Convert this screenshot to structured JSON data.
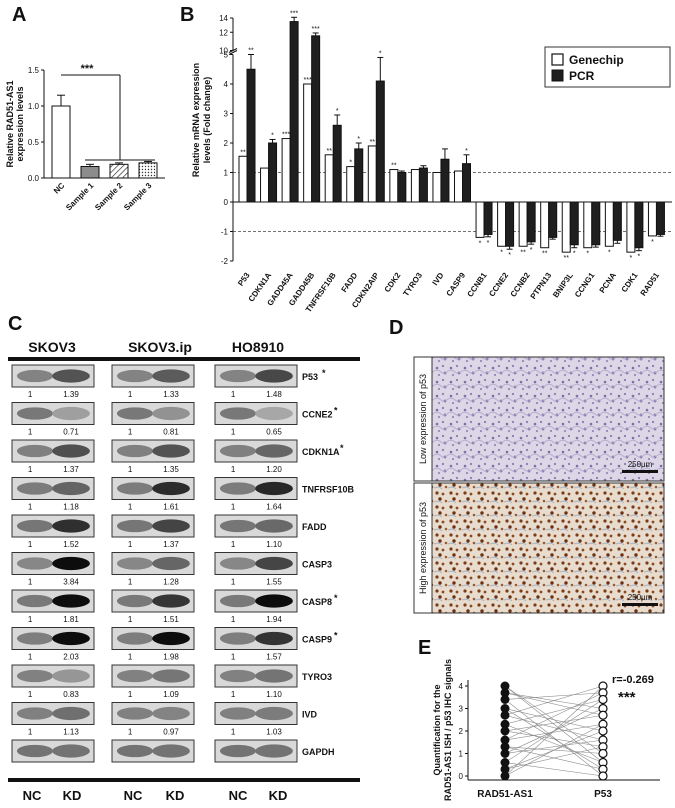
{
  "panels": {
    "A": {
      "letter": "A",
      "ylabel_line1": "Relative RAD51-AS1",
      "ylabel_line2": "expression levels",
      "yticks": [
        "0.0",
        "0.5",
        "1.0",
        "1.5"
      ],
      "significance": "***"
    },
    "B": {
      "letter": "B",
      "ylabel_line1": "Relative mRNA expression",
      "ylabel_line2": "levels (Fold change)",
      "yticks_low": [
        "-2",
        "-1",
        "0",
        "1",
        "2",
        "3",
        "4",
        "5"
      ],
      "yticks_high": [
        "10",
        "12",
        "14"
      ],
      "legend": [
        "Genechip",
        "PCR"
      ]
    },
    "C": {
      "letter": "C",
      "cell_lines": [
        "SKOV3",
        "SKOV3.ip",
        "HO8910"
      ],
      "conditions": [
        "NC",
        "KD",
        "NC",
        "KD",
        "NC",
        "KD"
      ],
      "rows": [
        {
          "protein": "P53",
          "star": "*",
          "values": [
            "1",
            "1.39",
            "1",
            "1.33",
            "1",
            "1.48"
          ]
        },
        {
          "protein": "CCNE2",
          "star": "*",
          "values": [
            "1",
            "0.71",
            "1",
            "0.81",
            "1",
            "0.65"
          ]
        },
        {
          "protein": "CDKN1A",
          "star": "*",
          "values": [
            "1",
            "1.37",
            "1",
            "1.35",
            "1",
            "1.20"
          ]
        },
        {
          "protein": "TNFRSF10B",
          "star": "",
          "values": [
            "1",
            "1.18",
            "1",
            "1.61",
            "1",
            "1.64"
          ]
        },
        {
          "protein": "FADD",
          "star": "",
          "values": [
            "1",
            "1.52",
            "1",
            "1.37",
            "1",
            "1.10"
          ]
        },
        {
          "protein": "CASP3",
          "star": "",
          "values": [
            "1",
            "3.84",
            "1",
            "1.28",
            "1",
            "1.55"
          ]
        },
        {
          "protein": "CASP8",
          "star": "*",
          "values": [
            "1",
            "1.81",
            "1",
            "1.51",
            "1",
            "1.94"
          ]
        },
        {
          "protein": "CASP9",
          "star": "*",
          "values": [
            "1",
            "2.03",
            "1",
            "1.98",
            "1",
            "1.57"
          ]
        },
        {
          "protein": "TYRO3",
          "star": "",
          "values": [
            "1",
            "0.83",
            "1",
            "1.09",
            "1",
            "1.10"
          ]
        },
        {
          "protein": "IVD",
          "star": "",
          "values": [
            "1",
            "1.13",
            "1",
            "0.97",
            "1",
            "1.03"
          ]
        },
        {
          "protein": "GAPDH",
          "star": "",
          "values": []
        }
      ]
    },
    "D": {
      "letter": "D",
      "low_label": "Low expression of p53",
      "high_label": "High expression of p53",
      "scalebar": "250μm"
    },
    "E": {
      "letter": "E",
      "ylabel_line1": "Quantification for the",
      "ylabel_line2": "RAD51-AS1 ISH / p53 IHC signals",
      "yticks": [
        "0",
        "1",
        "2",
        "3",
        "4"
      ],
      "categories": [
        "RAD51-AS1",
        "P53"
      ],
      "r_text": "r=-0.269",
      "significance": "***"
    }
  },
  "chart_data": [
    {
      "panel": "A",
      "type": "bar",
      "categories": [
        "NC",
        "Sample 1",
        "Sample 2",
        "Sample 3"
      ],
      "values": [
        1.0,
        0.16,
        0.19,
        0.21
      ],
      "errors": [
        0.15,
        0.03,
        0.02,
        0.02
      ],
      "fills": [
        "white",
        "gray",
        "hatched",
        "dotted"
      ],
      "ylabel": "Relative RAD51-AS1 expression levels",
      "ylim": [
        0,
        1.5
      ],
      "annotation": "***"
    },
    {
      "panel": "B",
      "type": "bar",
      "categories": [
        "P53",
        "CDKN1A",
        "GADD45A",
        "GADD45B",
        "TNFRSF10B",
        "FADD",
        "CDKN2AIP",
        "CDK2",
        "TYRO3",
        "IVD",
        "CASP9",
        "CCNB1",
        "CCNE2",
        "CCNB2",
        "PTPN13",
        "BNIP3L",
        "CCNG1",
        "PCNA",
        "CDK1",
        "RAD51"
      ],
      "series": [
        {
          "name": "Genechip",
          "values": [
            1.55,
            1.15,
            2.15,
            4.0,
            1.6,
            1.2,
            1.9,
            1.1,
            1.1,
            1.0,
            1.05,
            -1.2,
            -1.5,
            -1.5,
            -1.55,
            -1.7,
            -1.55,
            -1.5,
            -1.7,
            -1.15
          ],
          "stars": [
            "**",
            "",
            "***",
            "***",
            "**",
            "*",
            "**",
            "**",
            "",
            "",
            "",
            "*",
            "*",
            "**",
            "**",
            "**",
            "*",
            "*",
            "*",
            "*"
          ]
        },
        {
          "name": "PCR",
          "values": [
            4.5,
            2.0,
            13.5,
            11.5,
            2.6,
            1.8,
            4.1,
            1.0,
            1.15,
            1.45,
            1.3,
            -1.1,
            -1.5,
            -1.35,
            -1.2,
            -1.45,
            -1.45,
            -1.3,
            -1.55,
            -1.1
          ],
          "errors": [
            0.5,
            0.12,
            0.6,
            0.4,
            0.35,
            0.2,
            0.8,
            0.05,
            0.08,
            0.35,
            0.3,
            0.08,
            0.1,
            0.08,
            0.06,
            0.1,
            0.08,
            0.1,
            0.1,
            0.06
          ],
          "stars": [
            "**",
            "*",
            "***",
            "***",
            "*",
            "*",
            "*",
            "",
            "",
            "",
            "*",
            "*",
            "*",
            "*",
            "",
            "*",
            "",
            "",
            "*",
            ""
          ]
        }
      ],
      "ylim": [
        -2,
        14
      ],
      "axis_break": [
        5,
        10
      ],
      "reference_lines": [
        1,
        -1
      ]
    },
    {
      "panel": "E",
      "type": "scatter",
      "categories": [
        "RAD51-AS1",
        "P53"
      ],
      "left_values": [
        4.0,
        3.7,
        3.4,
        3.0,
        2.7,
        2.3,
        2.0,
        1.6,
        1.3,
        1.0,
        0.6,
        0.3,
        0.0
      ],
      "right_values": [
        4.0,
        3.7,
        3.4,
        3.0,
        2.7,
        2.3,
        2.0,
        1.6,
        1.3,
        1.0,
        0.6,
        0.3,
        0.0
      ],
      "ylim": [
        0,
        4
      ],
      "r": -0.269,
      "annotation": "***"
    }
  ]
}
